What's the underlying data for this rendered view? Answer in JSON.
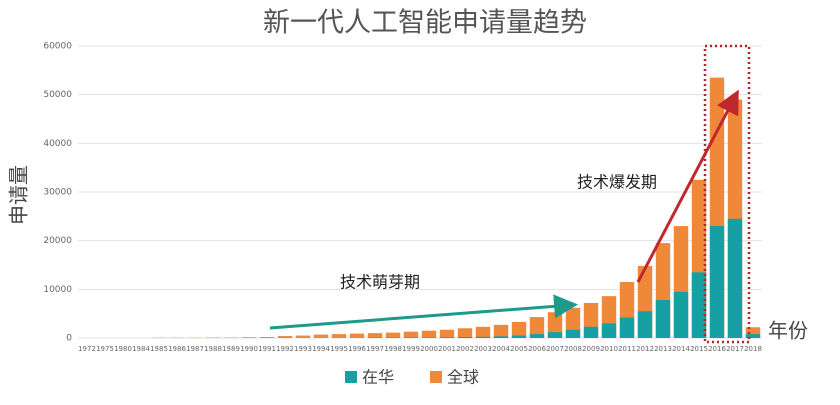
{
  "chart_data": {
    "type": "bar",
    "title": "新一代人工智能申请量趋势",
    "y_label": "申请量",
    "x_label": "年份",
    "annotations": [
      "技术萌芽期",
      "技术爆发期"
    ],
    "categories": [
      "1972",
      "1975",
      "1980",
      "1984",
      "1985",
      "1986",
      "1987",
      "1988",
      "1989",
      "1990",
      "1991",
      "1992",
      "1993",
      "1994",
      "1995",
      "1996",
      "1997",
      "1998",
      "1999",
      "2000",
      "2001",
      "2002",
      "2003",
      "2004",
      "2005",
      "2006",
      "2007",
      "2008",
      "2009",
      "2010",
      "2011",
      "2012",
      "2013",
      "2014",
      "2015",
      "2016",
      "2017",
      "2018"
    ],
    "series": [
      {
        "name": "全球",
        "color": "#f0883a",
        "values": [
          0,
          0,
          0,
          0,
          50,
          50,
          50,
          100,
          100,
          150,
          200,
          400,
          500,
          700,
          800,
          900,
          1000,
          1100,
          1300,
          1500,
          1700,
          2000,
          2300,
          2700,
          3300,
          4300,
          5300,
          6200,
          7200,
          8600,
          11500,
          14800,
          19500,
          23000,
          32500,
          53500,
          49000,
          2200
        ]
      },
      {
        "name": "在华",
        "color": "#16a0a3",
        "values": [
          0,
          0,
          0,
          0,
          0,
          0,
          0,
          0,
          0,
          0,
          0,
          0,
          0,
          0,
          0,
          0,
          50,
          50,
          100,
          100,
          150,
          200,
          250,
          350,
          500,
          800,
          1200,
          1700,
          2300,
          3000,
          4200,
          5500,
          7800,
          9500,
          13500,
          23000,
          24500,
          800
        ]
      }
    ],
    "ylim": [
      0,
      60000
    ],
    "yticks": [
      0,
      10000,
      20000,
      30000,
      40000,
      50000,
      60000
    ],
    "grid": true
  }
}
